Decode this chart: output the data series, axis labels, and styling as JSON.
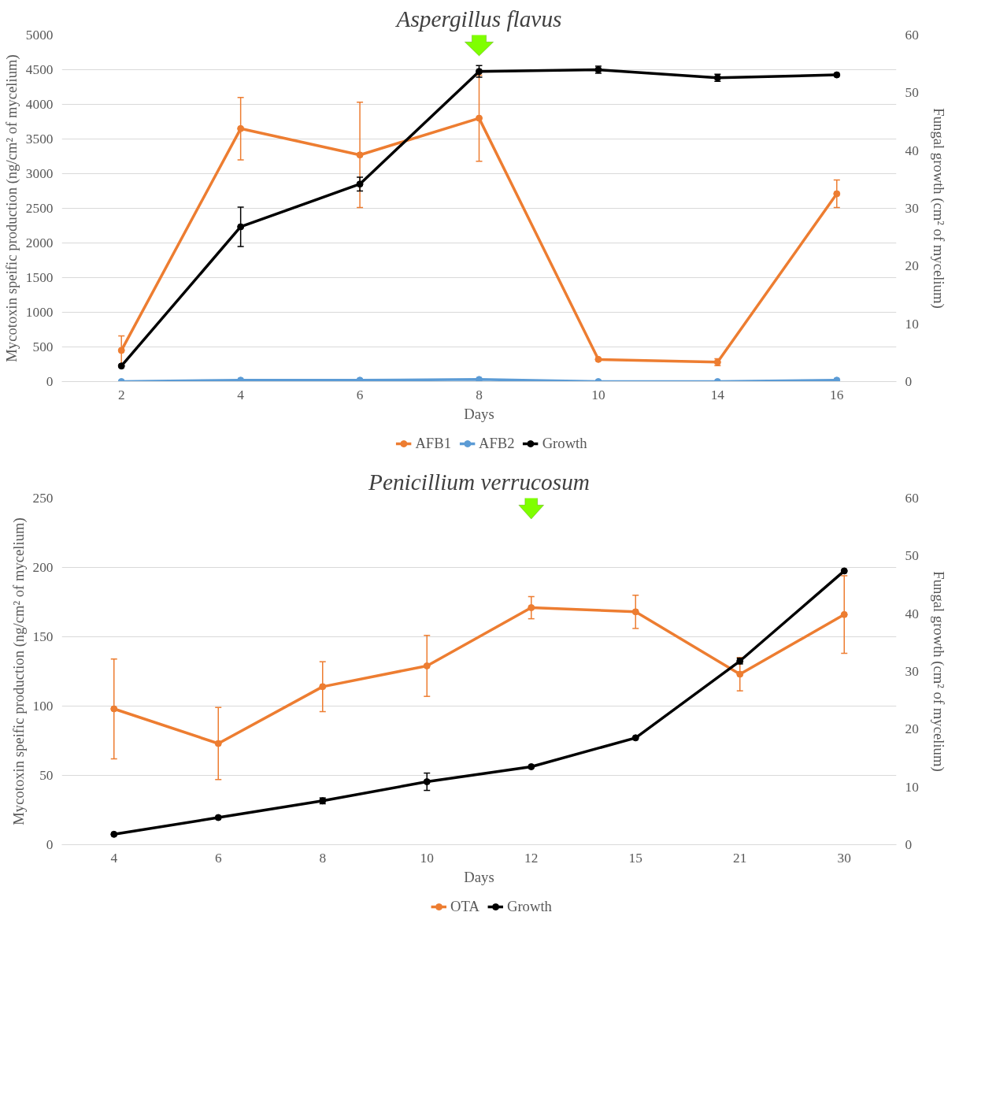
{
  "chart_data": [
    {
      "type": "line",
      "title": "Aspergillus flavus",
      "xlabel": "Days",
      "ylabel": "Mycotoxin speific production (ng/cm² of mycelium)",
      "y2label": "Fungal growth (cm² of mycelium)",
      "categories": [
        "2",
        "4",
        "6",
        "8",
        "10",
        "14",
        "16"
      ],
      "series": [
        {
          "name": "AFB1",
          "color": "#ed7d31",
          "values": [
            450,
            3650,
            3270,
            3800,
            320,
            280,
            2710
          ],
          "errors": [
            210,
            450,
            760,
            620,
            null,
            50,
            200
          ]
        },
        {
          "name": "AFB2",
          "color": "#5b9bd5",
          "values": [
            0,
            20,
            20,
            30,
            0,
            0,
            20
          ]
        },
        {
          "name": "Growth",
          "color": "#000000",
          "axis": "y2",
          "values": [
            2.7,
            26.8,
            34.2,
            53.7,
            54.0,
            52.6,
            53.1
          ],
          "errors": [
            null,
            3.4,
            1.2,
            1.0,
            0.6,
            0.6,
            null
          ]
        }
      ],
      "ylim": [
        0,
        5000
      ],
      "yticks": [
        0,
        500,
        1000,
        1500,
        2000,
        2500,
        3000,
        3500,
        4000,
        4500,
        5000
      ],
      "y2lim": [
        0,
        60
      ],
      "y2ticks": [
        0,
        10,
        20,
        30,
        40,
        50,
        60
      ],
      "grid": "y",
      "legend": "bottom",
      "marker": "circle"
    },
    {
      "type": "line",
      "title": "Penicillium verrucosum",
      "xlabel": "Days",
      "ylabel": "Mycotoxin speific production (ng/cm² of mycelium)",
      "y2label": "Fungal growth (cm² of mycelium)",
      "categories": [
        "4",
        "6",
        "8",
        "10",
        "12",
        "15",
        "21",
        "30"
      ],
      "series": [
        {
          "name": "OTA",
          "color": "#ed7d31",
          "values": [
            98,
            73,
            114,
            129,
            171,
            168,
            123,
            166
          ],
          "errors": [
            36,
            26,
            18,
            22,
            8,
            12,
            12,
            28
          ]
        },
        {
          "name": "Growth",
          "color": "#000000",
          "axis": "y2",
          "values": [
            1.8,
            4.7,
            7.6,
            10.9,
            13.5,
            18.5,
            31.8,
            47.4
          ],
          "errors": [
            null,
            null,
            0.5,
            1.5,
            null,
            null,
            0.5,
            null
          ]
        }
      ],
      "ylim": [
        0,
        250
      ],
      "yticks": [
        0,
        50,
        100,
        150,
        200,
        250
      ],
      "y2lim": [
        0,
        60
      ],
      "y2ticks": [
        0,
        10,
        20,
        30,
        40,
        50,
        60
      ],
      "grid": "y",
      "legend": "bottom",
      "marker": "circle"
    }
  ]
}
